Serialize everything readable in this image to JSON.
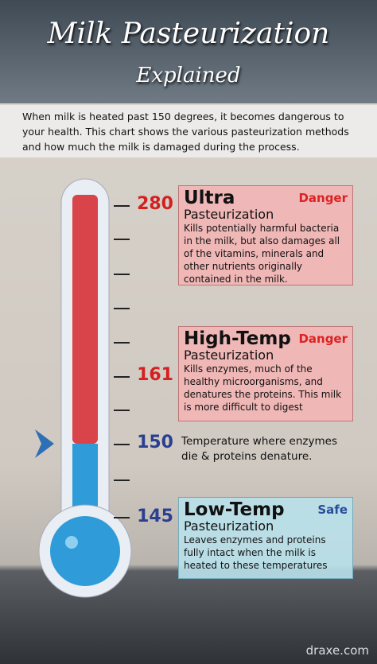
{
  "header": {
    "title": "Milk Pasteurization",
    "subtitle": "Explained"
  },
  "intro": "When milk is heated past 150 degrees, it becomes dangerous to your health. This chart shows the various pasteurization methods and how much the milk is damaged during the process.",
  "levels": [
    {
      "temperature": 280,
      "name": "Ultra",
      "subname": "Pasteurization",
      "status": "Danger",
      "description": "Kills potentially harmful bacteria in the milk, but also damages all of the vitamins, minerals and other nutrients originally contained in the milk."
    },
    {
      "temperature": 161,
      "name": "High-Temp",
      "subname": "Pasteurization",
      "status": "Danger",
      "description": "Kills enzymes, much of the healthy microorganisms, and denatures the proteins. This milk is more difficult to digest"
    },
    {
      "temperature": 145,
      "name": "Low-Temp",
      "subname": "Pasteurization",
      "status": "Safe",
      "description": "Leaves enzymes and proteins fully intact when the milk is heated to these temperatures"
    }
  ],
  "marker": {
    "temperature": 150,
    "description": "Temperature where enzymes die & proteins denature."
  },
  "footer": "draxe.com"
}
